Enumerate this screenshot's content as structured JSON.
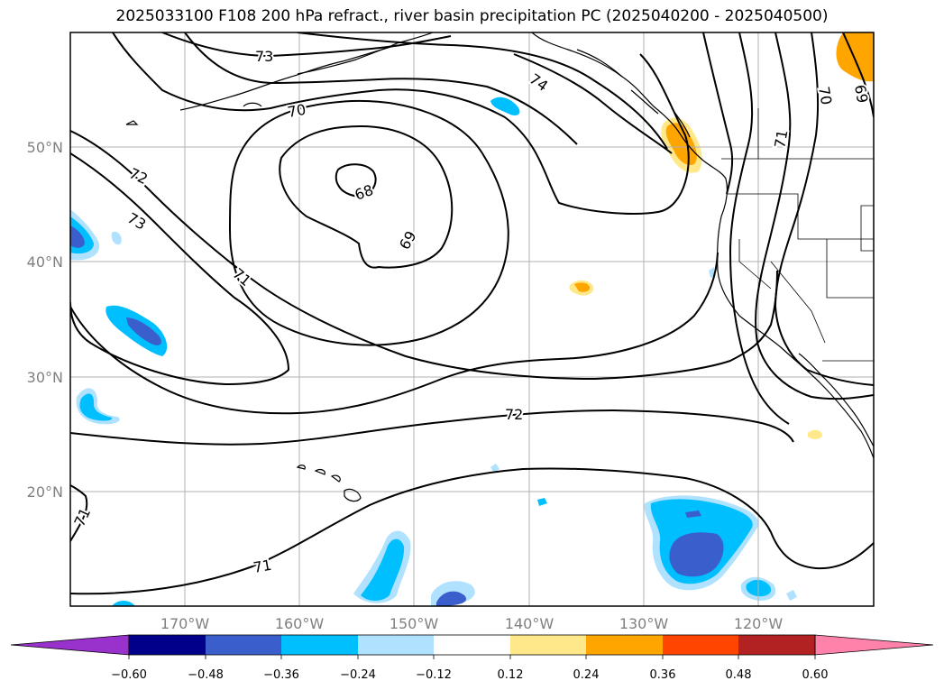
{
  "title": "2025033100 F108 200 hPa refract., river basin precipitation PC (2025040200 - 2025040500)",
  "map": {
    "lat_labels": [
      "50°N",
      "40°N",
      "30°N",
      "20°N"
    ],
    "lon_labels": [
      "170°W",
      "160°W",
      "150°W",
      "140°W",
      "130°W",
      "120°W"
    ],
    "contour_labels": [
      "73",
      "74",
      "70",
      "72",
      "68",
      "73",
      "69",
      "71",
      "70",
      "69",
      "71",
      "72",
      "71",
      "71"
    ]
  },
  "colorbar": {
    "ticks": [
      "−0.60",
      "−0.48",
      "−0.36",
      "−0.24",
      "−0.12",
      "0.12",
      "0.24",
      "0.36",
      "0.48",
      "0.60"
    ],
    "colors": [
      "#9932cc",
      "#00008b",
      "#3a5fcd",
      "#00bfff",
      "#b0e2ff",
      "#ffffff",
      "#ffe88a",
      "#ffa500",
      "#ff4500",
      "#b22222",
      "#ff82ab"
    ]
  }
}
